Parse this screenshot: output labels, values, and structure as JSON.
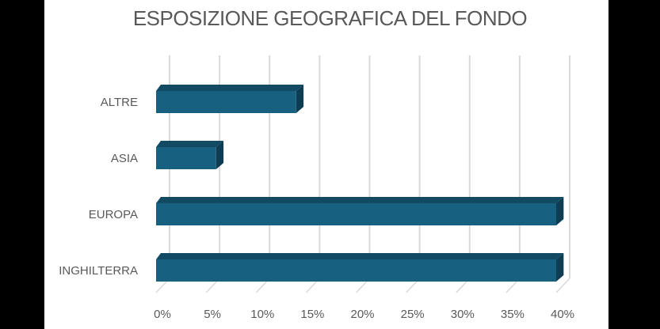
{
  "chart_data": {
    "type": "bar",
    "orientation": "horizontal",
    "style": "3d",
    "title": "ESPOSIZIONE GEOGRAFICA DEL FONDO",
    "categories": [
      "ALTRE",
      "ASIA",
      "EUROPA",
      "INGHILTERRA"
    ],
    "values": [
      14,
      6,
      40,
      40
    ],
    "value_format": "percent",
    "xlabel": "",
    "ylabel": "",
    "xlim": [
      0,
      40
    ],
    "x_ticks": [
      "0%",
      "5%",
      "10%",
      "15%",
      "20%",
      "25%",
      "30%",
      "35%",
      "40%"
    ],
    "grid": true,
    "legend": "none",
    "colors": {
      "bar_front": "#17607f",
      "bar_top": "#134a63",
      "bar_side": "#0e3c52",
      "grid": "#d9d9d9",
      "text": "#595959"
    }
  }
}
